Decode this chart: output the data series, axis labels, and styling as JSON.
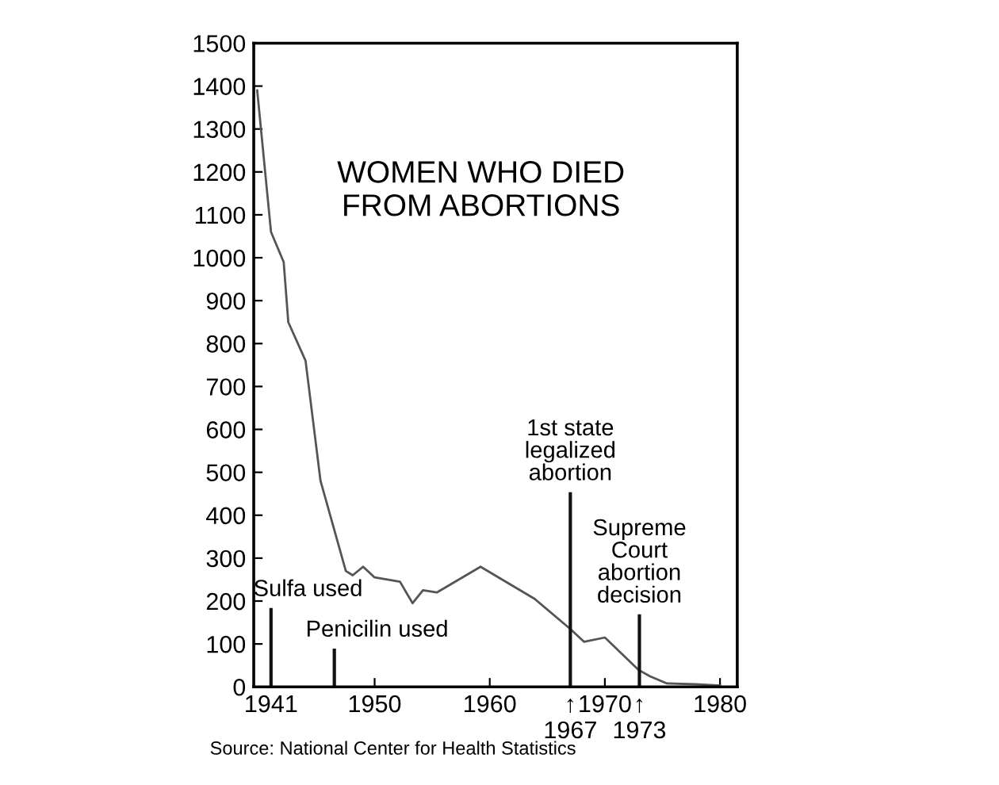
{
  "chart_data": {
    "type": "line",
    "title": "WOMEN WHO DIED\nFROM ABORTIONS",
    "x": [
      1939.8,
      1941,
      1942.1,
      1942.5,
      1944,
      1945.3,
      1947.5,
      1948.1,
      1949,
      1950,
      1952.2,
      1953.3,
      1954.2,
      1955.4,
      1959.2,
      1963.9,
      1967,
      1968.2,
      1970,
      1972.9,
      1973.9,
      1975.4,
      1977.9,
      1980
    ],
    "series": [
      {
        "color": "#555555",
        "values": [
          1390,
          1060,
          990,
          850,
          760,
          480,
          270,
          260,
          280,
          255,
          245,
          195,
          225,
          220,
          280,
          205,
          135,
          105,
          115,
          40,
          25,
          8,
          6,
          3
        ]
      }
    ],
    "xlim": [
      1939.5,
      1981.5
    ],
    "ylim": [
      0,
      1500
    ],
    "xticks": [
      1941,
      1950,
      1960,
      {
        "value": 1967,
        "label": "↑\n1967"
      },
      1970,
      {
        "value": 1973,
        "label": "↑\n1973"
      },
      1980
    ],
    "yticks": [
      0,
      100,
      200,
      300,
      400,
      500,
      600,
      700,
      800,
      900,
      1000,
      1100,
      1200,
      1300,
      1400,
      1500
    ],
    "ref_lines": [
      {
        "axis": "x",
        "value": 1941,
        "label": "Sulfa used"
      },
      {
        "axis": "x",
        "value": 1946.5,
        "label": "Penicilin used"
      },
      {
        "axis": "x",
        "value": 1967,
        "label": "1st state\nlegalized\nabortion"
      },
      {
        "axis": "x",
        "value": 1973,
        "label": "Supreme\nCourt\nabortion\ndecision"
      }
    ],
    "annotations": [
      "Source: National Center for Health Statistics"
    ],
    "grid": false,
    "legend": false,
    "marker": "none",
    "line_style": "solid"
  }
}
